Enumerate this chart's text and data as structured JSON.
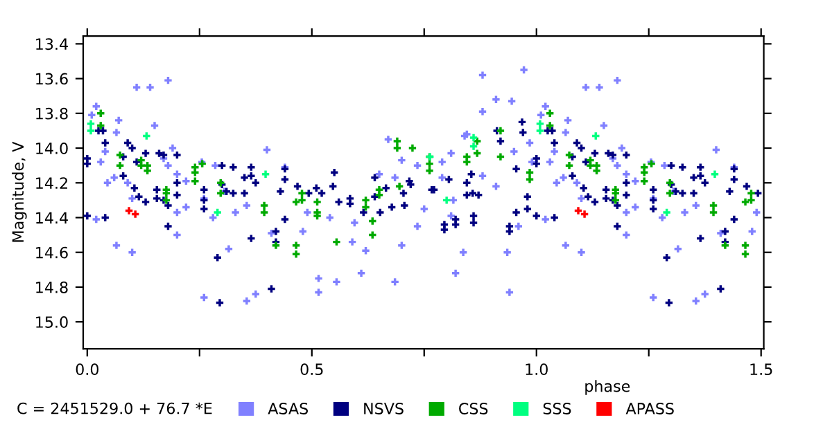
{
  "chart_data": {
    "type": "scatter",
    "ylabel": "Magnitude, V",
    "xlabel": "phase",
    "annotations": [
      "C = 2451529.0 + 76.7 *E"
    ],
    "xlim": [
      -0.009,
      1.506
    ],
    "ylim": [
      15.155,
      13.355
    ],
    "xticks": [
      {
        "value": 0,
        "label": "0.0"
      },
      {
        "value": 0.25,
        "label": null
      },
      {
        "value": 0.5,
        "label": "0.5"
      },
      {
        "value": 0.75,
        "label": null
      },
      {
        "value": 1,
        "label": "1.0"
      },
      {
        "value": 1.25,
        "label": null
      },
      {
        "value": 1.5,
        "label": "1.5"
      }
    ],
    "yticks": [
      13.4,
      13.6,
      13.8,
      {
        "value": 14,
        "label": "14.0"
      },
      14.2,
      14.4,
      14.6,
      14.8,
      {
        "value": 15,
        "label": "15.0"
      }
    ],
    "grid": false,
    "legend": "bottom",
    "marker": "cross",
    "series": [
      {
        "name": "ASAS",
        "color": "#8080ff",
        "x": [
          0.01,
          0.02,
          0.02,
          0.03,
          0.04,
          0.045,
          0.06,
          0.065,
          0.065,
          0.07,
          0.09,
          0.1,
          0.1,
          0.11,
          0.14,
          0.15,
          0.17,
          0.18,
          0.18,
          0.19,
          0.2,
          0.2,
          0.2,
          0.22,
          0.22,
          0.255,
          0.26,
          0.26,
          0.285,
          0.28,
          0.305,
          0.315,
          0.33,
          0.355,
          0.355,
          0.375,
          0.4,
          0.41,
          0.44,
          0.48,
          0.49,
          0.515,
          0.515,
          0.54,
          0.555,
          0.59,
          0.595,
          0.61,
          0.62,
          0.65,
          0.67,
          0.685,
          0.685,
          0.7,
          0.7,
          0.735,
          0.735,
          0.75,
          0.79,
          0.79,
          0.81,
          0.81,
          0.815,
          0.82,
          0.837,
          0.84,
          0.845,
          0.88,
          0.88,
          0.88,
          0.91,
          0.91,
          0.935,
          0.94,
          0.945,
          0.95,
          0.96,
          0.972,
          0.985,
          0.99,
          1.01,
          1.02,
          1.02,
          1.03,
          1.04,
          1.045,
          1.06,
          1.065,
          1.065,
          1.07,
          1.09,
          1.1,
          1.1,
          1.11,
          1.14,
          1.15,
          1.17,
          1.18,
          1.18,
          1.19,
          1.2,
          1.2,
          1.2,
          1.22,
          1.22,
          1.255,
          1.26,
          1.26,
          1.285,
          1.28,
          1.305,
          1.315,
          1.33,
          1.355,
          1.355,
          1.375,
          1.4,
          1.41,
          1.44,
          1.48,
          1.49
        ],
        "values": [
          13.81,
          13.76,
          14.41,
          14.08,
          14.02,
          14.2,
          14.17,
          13.91,
          14.56,
          13.84,
          14.2,
          14.29,
          14.6,
          13.65,
          13.65,
          13.87,
          14.06,
          13.61,
          14.1,
          14.0,
          14.15,
          14.37,
          14.5,
          14.34,
          14.19,
          14.08,
          14.29,
          14.86,
          14.1,
          14.4,
          14.25,
          14.58,
          14.37,
          14.33,
          14.88,
          14.84,
          14.01,
          14.49,
          14.11,
          14.48,
          14.37,
          14.75,
          14.83,
          14.4,
          14.77,
          14.54,
          14.43,
          14.72,
          14.59,
          14.15,
          13.95,
          14.17,
          14.77,
          14.07,
          14.56,
          14.1,
          14.45,
          14.35,
          14.08,
          14.17,
          14.03,
          14.39,
          14.3,
          14.72,
          14.6,
          13.93,
          13.92,
          13.79,
          13.58,
          14.16,
          13.72,
          14.22,
          14.6,
          14.83,
          13.73,
          14.02,
          14.45,
          13.55,
          13.97,
          14.08,
          13.81,
          13.76,
          14.41,
          14.08,
          14.02,
          14.2,
          14.17,
          13.91,
          14.56,
          13.84,
          14.2,
          14.29,
          14.6,
          13.65,
          13.65,
          13.87,
          14.06,
          13.61,
          14.1,
          14.0,
          14.15,
          14.37,
          14.5,
          14.34,
          14.19,
          14.08,
          14.29,
          14.86,
          14.1,
          14.4,
          14.25,
          14.58,
          14.37,
          14.33,
          14.88,
          14.84,
          14.01,
          14.49,
          14.11,
          14.48,
          14.37
        ]
      },
      {
        "name": "NSVS",
        "color": "#000080",
        "x": [
          0.0,
          0.0,
          0.0,
          0.025,
          0.035,
          0.04,
          0.04,
          0.08,
          0.08,
          0.09,
          0.1,
          0.105,
          0.11,
          0.115,
          0.13,
          0.13,
          0.16,
          0.17,
          0.155,
          0.155,
          0.17,
          0.18,
          0.18,
          0.2,
          0.2,
          0.2,
          0.26,
          0.26,
          0.26,
          0.29,
          0.295,
          0.3,
          0.3,
          0.31,
          0.325,
          0.325,
          0.35,
          0.35,
          0.365,
          0.365,
          0.365,
          0.375,
          0.41,
          0.42,
          0.42,
          0.43,
          0.44,
          0.44,
          0.44,
          0.468,
          0.493,
          0.51,
          0.522,
          0.547,
          0.55,
          0.56,
          0.585,
          0.585,
          0.615,
          0.64,
          0.64,
          0.652,
          0.665,
          0.678,
          0.704,
          0.706,
          0.717,
          0.72,
          0.767,
          0.772,
          0.795,
          0.795,
          0.805,
          0.82,
          0.82,
          0.845,
          0.845,
          0.855,
          0.858,
          0.86,
          0.86,
          0.871,
          0.912,
          0.92,
          0.94,
          0.94,
          0.955,
          0.955,
          0.968,
          0.97,
          0.98,
          0.98,
          1.0,
          1.0,
          1.0,
          1.025,
          1.035,
          1.04,
          1.04,
          1.08,
          1.08,
          1.09,
          1.1,
          1.105,
          1.11,
          1.115,
          1.13,
          1.13,
          1.16,
          1.17,
          1.155,
          1.155,
          1.17,
          1.18,
          1.18,
          1.2,
          1.2,
          1.2,
          1.26,
          1.26,
          1.26,
          1.29,
          1.295,
          1.3,
          1.3,
          1.31,
          1.325,
          1.325,
          1.35,
          1.35,
          1.365,
          1.365,
          1.365,
          1.375,
          1.41,
          1.42,
          1.42,
          1.43,
          1.44,
          1.44,
          1.44,
          1.468,
          1.493
        ],
        "values": [
          14.06,
          14.09,
          14.39,
          13.9,
          13.9,
          13.97,
          14.4,
          14.05,
          14.16,
          13.97,
          14.0,
          14.23,
          14.08,
          14.28,
          14.31,
          14.03,
          14.03,
          14.04,
          14.24,
          14.29,
          14.3,
          14.33,
          14.45,
          14.2,
          14.27,
          14.04,
          14.24,
          14.3,
          14.35,
          14.63,
          14.89,
          14.1,
          14.21,
          14.25,
          14.11,
          14.26,
          14.17,
          14.26,
          14.16,
          14.11,
          14.52,
          14.2,
          14.81,
          14.54,
          14.48,
          14.25,
          14.41,
          14.12,
          14.18,
          14.22,
          14.26,
          14.23,
          14.26,
          14.22,
          14.14,
          14.31,
          14.29,
          14.32,
          14.37,
          14.17,
          14.28,
          14.37,
          14.23,
          14.34,
          14.26,
          14.33,
          14.19,
          14.21,
          14.24,
          14.24,
          14.44,
          14.47,
          14.18,
          14.41,
          14.44,
          14.2,
          14.27,
          14.15,
          14.26,
          14.39,
          14.43,
          14.27,
          13.9,
          13.96,
          14.45,
          14.48,
          14.12,
          14.37,
          13.85,
          13.91,
          14.28,
          14.35,
          14.06,
          14.09,
          14.39,
          13.9,
          13.9,
          13.97,
          14.4,
          14.05,
          14.16,
          13.97,
          14.0,
          14.23,
          14.08,
          14.28,
          14.31,
          14.03,
          14.03,
          14.04,
          14.24,
          14.29,
          14.3,
          14.33,
          14.45,
          14.2,
          14.27,
          14.04,
          14.24,
          14.3,
          14.35,
          14.63,
          14.89,
          14.1,
          14.21,
          14.25,
          14.11,
          14.26,
          14.17,
          14.26,
          14.16,
          14.11,
          14.52,
          14.2,
          14.81,
          14.54,
          14.48,
          14.25,
          14.41,
          14.12,
          14.18,
          14.22,
          14.26
        ]
      },
      {
        "name": "CSS",
        "color": "#00aa00",
        "x": [
          0.03,
          0.03,
          0.073,
          0.073,
          0.12,
          0.12,
          0.134,
          0.134,
          0.176,
          0.176,
          0.176,
          0.24,
          0.24,
          0.24,
          0.256,
          0.297,
          0.297,
          0.394,
          0.394,
          0.42,
          0.465,
          0.465,
          0.465,
          0.478,
          0.478,
          0.512,
          0.512,
          0.512,
          0.555,
          0.62,
          0.62,
          0.635,
          0.635,
          0.65,
          0.65,
          0.69,
          0.69,
          0.695,
          0.724,
          0.762,
          0.762,
          0.762,
          0.845,
          0.845,
          0.868,
          0.868,
          0.92,
          0.92,
          0.985,
          0.985,
          1.03,
          1.03,
          1.073,
          1.073,
          1.12,
          1.12,
          1.134,
          1.134,
          1.176,
          1.176,
          1.176,
          1.24,
          1.24,
          1.24,
          1.256,
          1.297,
          1.297,
          1.394,
          1.394,
          1.42,
          1.465,
          1.465,
          1.465,
          1.478,
          1.478
        ],
        "values": [
          13.8,
          13.87,
          14.04,
          14.1,
          14.07,
          14.1,
          14.1,
          14.13,
          14.24,
          14.26,
          14.3,
          14.11,
          14.14,
          14.19,
          14.09,
          14.2,
          14.26,
          14.33,
          14.37,
          14.56,
          14.56,
          14.61,
          14.31,
          14.26,
          14.3,
          14.37,
          14.39,
          14.31,
          14.54,
          14.3,
          14.34,
          14.42,
          14.5,
          14.24,
          14.27,
          13.96,
          14.0,
          14.22,
          14.0,
          14.05,
          14.09,
          14.13,
          14.05,
          14.08,
          13.96,
          14.03,
          13.9,
          14.05,
          14.14,
          14.18,
          13.8,
          13.87,
          14.04,
          14.1,
          14.07,
          14.1,
          14.1,
          14.13,
          14.24,
          14.26,
          14.3,
          14.11,
          14.14,
          14.19,
          14.09,
          14.2,
          14.26,
          14.33,
          14.37,
          14.56,
          14.56,
          14.61,
          14.31,
          14.26,
          14.3
        ]
      },
      {
        "name": "SSS",
        "color": "#00ff80",
        "x": [
          0.008,
          0.008,
          0.132,
          0.29,
          0.397,
          0.763,
          0.8,
          0.86,
          0.86,
          1.008,
          1.008,
          1.132,
          1.29,
          1.397
        ],
        "values": [
          13.86,
          13.9,
          13.93,
          14.37,
          14.15,
          14.05,
          14.3,
          13.94,
          13.99,
          13.86,
          13.9,
          13.93,
          14.37,
          14.15
        ]
      },
      {
        "name": "APASS",
        "color": "#ff0000",
        "x": [
          0.093,
          0.107,
          1.093,
          1.107
        ],
        "values": [
          14.36,
          14.38,
          14.36,
          14.38
        ]
      }
    ]
  }
}
